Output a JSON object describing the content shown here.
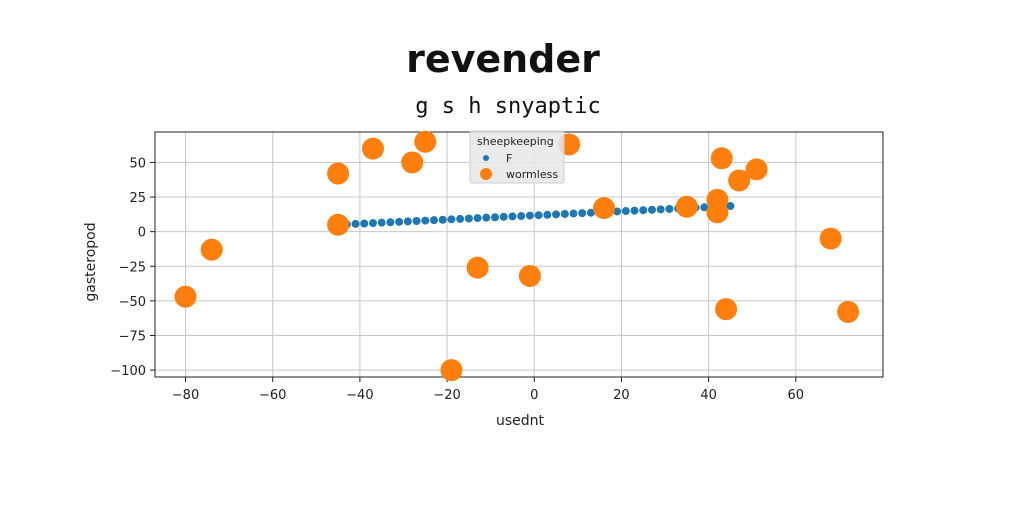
{
  "chart_data": {
    "type": "scatter",
    "title": "revender",
    "subtitle": "g s h snyaptic",
    "xlabel": "usednt",
    "ylabel": "gasteropod",
    "xlim": [
      -87,
      80
    ],
    "ylim": [
      -105,
      72
    ],
    "xticks": [
      -80,
      -60,
      -40,
      -20,
      0,
      20,
      40,
      60
    ],
    "yticks": [
      50,
      25,
      0,
      -25,
      -50,
      -75,
      -100
    ],
    "grid": true,
    "legend": {
      "title": "sheepkeeping",
      "placement": "top-center"
    },
    "series": [
      {
        "name": "F",
        "color": "#1f77b4",
        "marker_size": "small",
        "x": [
          -45,
          -43,
          -41,
          -39,
          -37,
          -35,
          -33,
          -31,
          -29,
          -27,
          -25,
          -23,
          -21,
          -19,
          -17,
          -15,
          -13,
          -11,
          -9,
          -7,
          -5,
          -3,
          -1,
          1,
          3,
          5,
          7,
          9,
          11,
          13,
          15,
          17,
          19,
          21,
          23,
          25,
          27,
          29,
          31,
          33,
          35,
          37,
          39,
          41,
          43,
          45
        ],
        "y": [
          5.0,
          5.3,
          5.6,
          5.9,
          6.2,
          6.5,
          6.8,
          7.1,
          7.4,
          7.7,
          8.0,
          8.3,
          8.6,
          8.9,
          9.2,
          9.5,
          9.8,
          10.1,
          10.4,
          10.7,
          11.0,
          11.3,
          11.6,
          11.9,
          12.2,
          12.5,
          12.8,
          13.1,
          13.4,
          13.7,
          14.0,
          14.3,
          14.6,
          14.9,
          15.2,
          15.5,
          15.8,
          16.1,
          16.4,
          16.7,
          17.0,
          17.3,
          17.6,
          17.9,
          18.2,
          18.5
        ]
      },
      {
        "name": "wormless",
        "color": "#ff7f0e",
        "marker_size": "large",
        "x": [
          -45,
          -45,
          -37,
          -28,
          -25,
          8,
          -80,
          -74,
          -19,
          -13,
          -1,
          16,
          35,
          42,
          42,
          43,
          44,
          47,
          51,
          68,
          72
        ],
        "y": [
          42,
          5,
          60,
          50,
          65,
          63,
          -47,
          -13,
          -100,
          -26,
          -32,
          17,
          18,
          14,
          23,
          53,
          -56,
          37,
          45,
          -5,
          -58
        ]
      }
    ]
  }
}
